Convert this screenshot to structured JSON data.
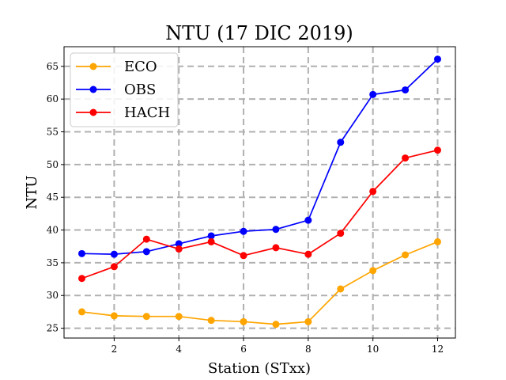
{
  "chart_data": {
    "type": "line",
    "title": "NTU (17 DIC 2019)",
    "xlabel": "Station (STxx)",
    "ylabel": "NTU",
    "x": [
      1,
      2,
      3,
      4,
      5,
      6,
      7,
      8,
      9,
      10,
      11,
      12
    ],
    "xlim": [
      0.45,
      12.55
    ],
    "ylim": [
      23.5,
      68.0
    ],
    "xticks": [
      2,
      4,
      6,
      8,
      10,
      12
    ],
    "yticks": [
      25,
      30,
      35,
      40,
      45,
      50,
      55,
      60,
      65
    ],
    "grid": true,
    "legend_position": "top-left",
    "series": [
      {
        "name": "ECO",
        "color": "#ffa500",
        "values": [
          27.5,
          26.9,
          26.8,
          26.8,
          26.2,
          26.0,
          25.6,
          26.0,
          31.0,
          33.8,
          36.2,
          38.2
        ]
      },
      {
        "name": "OBS",
        "color": "#0000ff",
        "values": [
          36.4,
          36.3,
          36.7,
          37.9,
          39.1,
          39.8,
          40.1,
          41.5,
          53.4,
          60.7,
          61.4,
          66.1
        ]
      },
      {
        "name": "HACH",
        "color": "#ff0000",
        "values": [
          32.6,
          34.4,
          38.6,
          37.1,
          38.2,
          36.1,
          37.3,
          36.3,
          39.5,
          45.9,
          51.0,
          52.2
        ]
      }
    ]
  }
}
